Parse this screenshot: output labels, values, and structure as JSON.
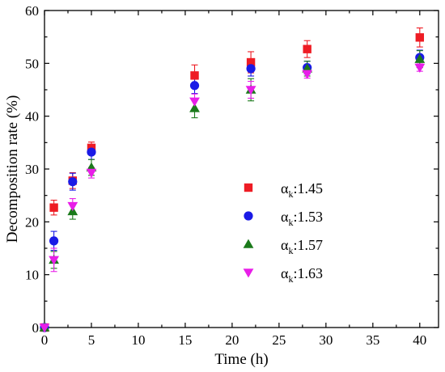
{
  "chart_data": {
    "type": "scatter",
    "title": "",
    "xlabel": "Time (h)",
    "ylabel": "Decomposition rate (%)",
    "xlim": [
      0,
      42
    ],
    "ylim": [
      0,
      60
    ],
    "xticks": [
      0,
      5,
      10,
      15,
      20,
      25,
      30,
      35,
      40
    ],
    "yticks": [
      0,
      10,
      20,
      30,
      40,
      50,
      60
    ],
    "grid": false,
    "legend_position": "center-right",
    "series": [
      {
        "name_prefix": "α",
        "name_sub": "k",
        "name_value": ":1.45",
        "color": "#ee1c24",
        "marker": "square",
        "x": [
          0,
          1,
          3,
          5,
          16,
          22,
          28,
          40
        ],
        "y": [
          0,
          22.7,
          27.8,
          34.0,
          47.7,
          50.2,
          52.7,
          54.9
        ],
        "err": [
          0,
          1.4,
          1.5,
          1.1,
          2.0,
          2.0,
          1.6,
          1.8
        ]
      },
      {
        "name_prefix": "α",
        "name_sub": "k",
        "name_value": ":1.53",
        "color": "#1a1ae6",
        "marker": "circle",
        "x": [
          0,
          1,
          3,
          5,
          16,
          22,
          28,
          40
        ],
        "y": [
          0,
          16.4,
          27.6,
          33.2,
          45.8,
          49.0,
          49.2,
          51.1
        ],
        "err": [
          0,
          1.8,
          1.6,
          1.4,
          1.5,
          1.4,
          1.2,
          1.4
        ]
      },
      {
        "name_prefix": "α",
        "name_sub": "k",
        "name_value": ":1.57",
        "color": "#1b7a1b",
        "marker": "triangle-up",
        "x": [
          0,
          1,
          3,
          5,
          16,
          22,
          28,
          40
        ],
        "y": [
          0,
          12.8,
          22.0,
          30.3,
          41.5,
          45.0,
          49.0,
          50.8
        ],
        "err": [
          0,
          1.6,
          1.5,
          1.5,
          1.8,
          2.1,
          1.4,
          1.6
        ]
      },
      {
        "name_prefix": "α",
        "name_sub": "k",
        "name_value": ":1.63",
        "color": "#e81ee8",
        "marker": "triangle-down",
        "x": [
          0,
          1,
          3,
          5,
          16,
          22,
          28,
          40
        ],
        "y": [
          0,
          12.8,
          23.0,
          29.3,
          42.8,
          45.0,
          48.0,
          49.2
        ],
        "err": [
          0,
          2.2,
          1.4,
          1.0,
          1.4,
          1.6,
          0.8,
          0.7
        ]
      }
    ]
  }
}
